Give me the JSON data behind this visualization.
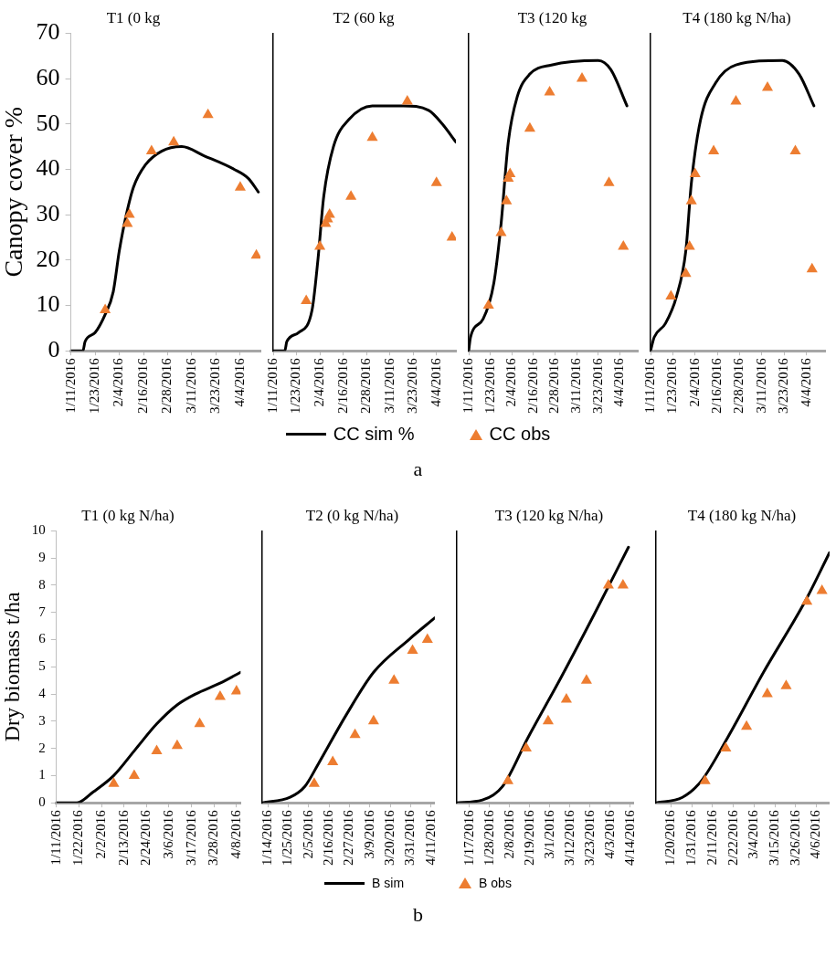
{
  "chart_data": [
    {
      "type": "line",
      "title": "T1 (0 kg",
      "ylabel": "Canopy cover %",
      "xlim": [
        "2016-01-11",
        "2016-04-14"
      ],
      "xticks": [
        {
          "value": "2016-01-11",
          "label": "1/11/2016"
        },
        {
          "value": "2016-01-23",
          "label": "1/23/2016"
        },
        {
          "value": "2016-02-04",
          "label": "2/4/2016"
        },
        {
          "value": "2016-02-16",
          "label": "2/16/2016"
        },
        {
          "value": "2016-02-28",
          "label": "2/28/2016"
        },
        {
          "value": "2016-03-11",
          "label": "3/11/2016"
        },
        {
          "value": "2016-03-23",
          "label": "3/23/2016"
        },
        {
          "value": "2016-04-04",
          "label": "4/4/2016"
        }
      ],
      "ylim": [
        0,
        70
      ],
      "yticks": [
        0,
        10,
        20,
        30,
        40,
        50,
        60,
        70
      ],
      "legend": "bottom",
      "annotations": [
        "a"
      ],
      "series": [
        {
          "name": "CC sim %",
          "type": "line",
          "marker": "none",
          "color": "#000000",
          "x": [
            "2016-01-11",
            "2016-01-17",
            "2016-01-18",
            "2016-01-23",
            "2016-01-28",
            "2016-02-01",
            "2016-02-04",
            "2016-02-07",
            "2016-02-11",
            "2016-02-17",
            "2016-02-25",
            "2016-03-06",
            "2016-03-17",
            "2016-04-01",
            "2016-04-08",
            "2016-04-13"
          ],
          "values": [
            0,
            0,
            2,
            4,
            8,
            13,
            22,
            29,
            36,
            41,
            44,
            45,
            43,
            40,
            38,
            35
          ]
        },
        {
          "name": "CC obs",
          "type": "scatter",
          "marker": "triangle",
          "color": "#ed7d31",
          "x": [
            "2016-01-28",
            "2016-02-08",
            "2016-02-09",
            "2016-02-20",
            "2016-03-02",
            "2016-03-19",
            "2016-04-04",
            "2016-04-12"
          ],
          "values": [
            9,
            28,
            30,
            44,
            46,
            52,
            36,
            21
          ]
        }
      ]
    },
    {
      "type": "line",
      "title": "T2 (60 kg",
      "tick_labels": "x",
      "xlim": [
        "2016-01-11",
        "2016-04-14"
      ],
      "xticks": [
        {
          "value": "2016-01-11",
          "label": "1/11/2016"
        },
        {
          "value": "2016-01-23",
          "label": "1/23/2016"
        },
        {
          "value": "2016-02-04",
          "label": "2/4/2016"
        },
        {
          "value": "2016-02-16",
          "label": "2/16/2016"
        },
        {
          "value": "2016-02-28",
          "label": "2/28/2016"
        },
        {
          "value": "2016-03-11",
          "label": "3/11/2016"
        },
        {
          "value": "2016-03-23",
          "label": "3/23/2016"
        },
        {
          "value": "2016-04-04",
          "label": "4/4/2016"
        }
      ],
      "ylim": [
        0,
        70
      ],
      "yticks": [
        0,
        10,
        20,
        30,
        40,
        50,
        60,
        70
      ],
      "series": [
        {
          "type": "line",
          "marker": "none",
          "color": "#000000",
          "x": [
            "2016-01-11",
            "2016-01-17",
            "2016-01-18",
            "2016-01-24",
            "2016-01-31",
            "2016-02-03",
            "2016-02-06",
            "2016-02-11",
            "2016-02-19",
            "2016-03-02",
            "2016-03-18",
            "2016-03-31",
            "2016-04-07",
            "2016-04-14"
          ],
          "values": [
            0,
            0,
            2,
            4,
            9,
            20,
            34,
            45,
            51,
            54,
            54,
            53,
            50,
            46
          ]
        },
        {
          "type": "scatter",
          "marker": "triangle",
          "color": "#ed7d31",
          "x": [
            "2016-01-28",
            "2016-02-04",
            "2016-02-07",
            "2016-02-08",
            "2016-02-09",
            "2016-02-20",
            "2016-03-02",
            "2016-03-20",
            "2016-04-04",
            "2016-04-12"
          ],
          "values": [
            11,
            23,
            28,
            29,
            30,
            34,
            47,
            55,
            37,
            25
          ]
        }
      ]
    },
    {
      "type": "line",
      "title": "T3 (120 kg",
      "tick_labels": "x",
      "xlim": [
        "2016-01-11",
        "2016-04-14"
      ],
      "xticks": [
        {
          "value": "2016-01-11",
          "label": "1/11/2016"
        },
        {
          "value": "2016-01-23",
          "label": "1/23/2016"
        },
        {
          "value": "2016-02-04",
          "label": "2/4/2016"
        },
        {
          "value": "2016-02-16",
          "label": "2/16/2016"
        },
        {
          "value": "2016-02-28",
          "label": "2/28/2016"
        },
        {
          "value": "2016-03-11",
          "label": "3/11/2016"
        },
        {
          "value": "2016-03-23",
          "label": "3/23/2016"
        },
        {
          "value": "2016-04-04",
          "label": "4/4/2016"
        }
      ],
      "ylim": [
        0,
        70
      ],
      "yticks": [
        0,
        10,
        20,
        30,
        40,
        50,
        60,
        70
      ],
      "series": [
        {
          "type": "line",
          "marker": "none",
          "color": "#000000",
          "x": [
            "2016-01-11",
            "2016-01-12",
            "2016-01-19",
            "2016-01-25",
            "2016-01-29",
            "2016-02-02",
            "2016-02-07",
            "2016-02-14",
            "2016-02-26",
            "2016-03-23",
            "2016-03-30",
            "2016-04-08"
          ],
          "values": [
            0,
            3,
            7,
            15,
            28,
            46,
            56,
            61,
            63,
            64,
            62,
            54
          ]
        },
        {
          "type": "scatter",
          "marker": "triangle",
          "color": "#ed7d31",
          "x": [
            "2016-01-22",
            "2016-01-29",
            "2016-02-01",
            "2016-02-02",
            "2016-02-03",
            "2016-02-14",
            "2016-02-25",
            "2016-03-14",
            "2016-03-29",
            "2016-04-06"
          ],
          "values": [
            10,
            26,
            33,
            38,
            39,
            49,
            57,
            60,
            37,
            23
          ]
        }
      ]
    },
    {
      "type": "line",
      "title": "T4 (180 kg N/ha)",
      "tick_labels": "x",
      "xlim": [
        "2016-01-11",
        "2016-04-14"
      ],
      "xticks": [
        {
          "value": "2016-01-11",
          "label": "1/11/2016"
        },
        {
          "value": "2016-01-23",
          "label": "1/23/2016"
        },
        {
          "value": "2016-02-04",
          "label": "2/4/2016"
        },
        {
          "value": "2016-02-16",
          "label": "2/16/2016"
        },
        {
          "value": "2016-02-28",
          "label": "2/28/2016"
        },
        {
          "value": "2016-03-11",
          "label": "3/11/2016"
        },
        {
          "value": "2016-03-23",
          "label": "3/23/2016"
        },
        {
          "value": "2016-04-04",
          "label": "4/4/2016"
        }
      ],
      "ylim": [
        0,
        70
      ],
      "yticks": [
        0,
        10,
        20,
        30,
        40,
        50,
        60,
        70
      ],
      "series": [
        {
          "type": "line",
          "marker": "none",
          "color": "#000000",
          "x": [
            "2016-01-11",
            "2016-01-13",
            "2016-01-19",
            "2016-01-25",
            "2016-01-30",
            "2016-02-02",
            "2016-02-07",
            "2016-02-15",
            "2016-02-26",
            "2016-03-22",
            "2016-03-31",
            "2016-04-08"
          ],
          "values": [
            0,
            3,
            6,
            12,
            22,
            37,
            51,
            59,
            63,
            64,
            61,
            54
          ]
        },
        {
          "type": "scatter",
          "marker": "triangle",
          "color": "#ed7d31",
          "x": [
            "2016-01-22",
            "2016-01-30",
            "2016-02-01",
            "2016-02-02",
            "2016-02-04",
            "2016-02-14",
            "2016-02-26",
            "2016-03-14",
            "2016-03-29",
            "2016-04-07"
          ],
          "values": [
            12,
            17,
            23,
            33,
            39,
            44,
            55,
            58,
            44,
            18
          ]
        }
      ]
    },
    {
      "type": "line",
      "title": "T1 (0 kg N/ha)",
      "ylabel": "Dry biomass t/ha",
      "xlim": [
        "2016-01-11",
        "2016-04-10"
      ],
      "xticks": [
        {
          "value": "2016-01-11",
          "label": "1/11/2016"
        },
        {
          "value": "2016-01-22",
          "label": "1/22/2016"
        },
        {
          "value": "2016-02-02",
          "label": "2/2/2016"
        },
        {
          "value": "2016-02-13",
          "label": "2/13/2016"
        },
        {
          "value": "2016-02-24",
          "label": "2/24/2016"
        },
        {
          "value": "2016-03-06",
          "label": "3/6/2016"
        },
        {
          "value": "2016-03-17",
          "label": "3/17/2016"
        },
        {
          "value": "2016-03-28",
          "label": "3/28/2016"
        },
        {
          "value": "2016-04-08",
          "label": "4/8/2016"
        }
      ],
      "ylim": [
        0,
        10
      ],
      "yticks": [
        0,
        1,
        2,
        3,
        4,
        5,
        6,
        7,
        8,
        9,
        10
      ],
      "legend": "bottom",
      "annotations": [
        "b"
      ],
      "series": [
        {
          "name": "B sim",
          "type": "line",
          "marker": "none",
          "color": "#000000",
          "x": [
            "2016-01-11",
            "2016-01-21",
            "2016-01-29",
            "2016-02-08",
            "2016-02-19",
            "2016-02-29",
            "2016-03-10",
            "2016-03-19",
            "2016-03-31",
            "2016-04-10"
          ],
          "values": [
            0,
            0,
            0.4,
            1.0,
            2.0,
            2.9,
            3.6,
            4.0,
            4.4,
            4.8
          ]
        },
        {
          "name": "B obs",
          "type": "scatter",
          "marker": "triangle",
          "color": "#ed7d31",
          "x": [
            "2016-02-08",
            "2016-02-18",
            "2016-02-29",
            "2016-03-10",
            "2016-03-21",
            "2016-03-31",
            "2016-04-08"
          ],
          "values": [
            0.7,
            1.0,
            1.9,
            2.1,
            2.9,
            3.9,
            4.1
          ]
        }
      ]
    },
    {
      "type": "line",
      "title": "T2 (0 kg N/ha)",
      "tick_labels": "x",
      "xlim": [
        "2016-01-11",
        "2016-04-13"
      ],
      "xticks": [
        {
          "value": "2016-01-14",
          "label": "1/14/2016"
        },
        {
          "value": "2016-01-25",
          "label": "1/25/2016"
        },
        {
          "value": "2016-02-05",
          "label": "2/5/2016"
        },
        {
          "value": "2016-02-16",
          "label": "2/16/2016"
        },
        {
          "value": "2016-02-27",
          "label": "2/27/2016"
        },
        {
          "value": "2016-03-09",
          "label": "3/9/2016"
        },
        {
          "value": "2016-03-20",
          "label": "3/20/2016"
        },
        {
          "value": "2016-03-31",
          "label": "3/31/2016"
        },
        {
          "value": "2016-04-11",
          "label": "4/11/2016"
        }
      ],
      "ylim": [
        0,
        10
      ],
      "yticks": [
        0,
        1,
        2,
        3,
        4,
        5,
        6,
        7,
        8,
        9,
        10
      ],
      "series": [
        {
          "type": "line",
          "marker": "none",
          "color": "#000000",
          "x": [
            "2016-01-11",
            "2016-01-26",
            "2016-02-03",
            "2016-02-10",
            "2016-02-25",
            "2016-03-11",
            "2016-03-30",
            "2016-04-13"
          ],
          "values": [
            0,
            0.2,
            0.6,
            1.4,
            3.2,
            4.8,
            6.0,
            6.8
          ]
        },
        {
          "type": "scatter",
          "marker": "triangle",
          "color": "#ed7d31",
          "x": [
            "2016-02-08",
            "2016-02-18",
            "2016-03-01",
            "2016-03-11",
            "2016-03-22",
            "2016-04-01",
            "2016-04-09"
          ],
          "values": [
            0.7,
            1.5,
            2.5,
            3.0,
            4.5,
            5.6,
            6.0
          ]
        }
      ]
    },
    {
      "type": "line",
      "title": "T3 (120 kg N/ha)",
      "tick_labels": "x",
      "xlim": [
        "2016-01-10",
        "2016-04-16"
      ],
      "xticks": [
        {
          "value": "2016-01-17",
          "label": "1/17/2016"
        },
        {
          "value": "2016-01-28",
          "label": "1/28/2016"
        },
        {
          "value": "2016-02-08",
          "label": "2/8/2016"
        },
        {
          "value": "2016-02-19",
          "label": "2/19/2016"
        },
        {
          "value": "2016-03-01",
          "label": "3/1/2016"
        },
        {
          "value": "2016-03-12",
          "label": "3/12/2016"
        },
        {
          "value": "2016-03-23",
          "label": "3/23/2016"
        },
        {
          "value": "2016-04-03",
          "label": "4/3/2016"
        },
        {
          "value": "2016-04-14",
          "label": "4/14/2016"
        }
      ],
      "ylim": [
        0,
        10
      ],
      "yticks": [
        0,
        1,
        2,
        3,
        4,
        5,
        6,
        7,
        8,
        9,
        10
      ],
      "series": [
        {
          "type": "line",
          "marker": "none",
          "color": "#000000",
          "x": [
            "2016-01-10",
            "2016-01-24",
            "2016-02-04",
            "2016-02-18",
            "2016-03-07",
            "2016-03-25",
            "2016-04-13"
          ],
          "values": [
            0,
            0.1,
            0.6,
            2.4,
            4.6,
            6.9,
            9.4
          ]
        },
        {
          "type": "scatter",
          "marker": "triangle",
          "color": "#ed7d31",
          "x": [
            "2016-02-07",
            "2016-02-17",
            "2016-02-29",
            "2016-03-10",
            "2016-03-21",
            "2016-04-02",
            "2016-04-10"
          ],
          "values": [
            0.8,
            2.0,
            3.0,
            3.8,
            4.5,
            8.0,
            8.0
          ]
        }
      ]
    },
    {
      "type": "line",
      "title": "T4 (180 kg N/ha)",
      "tick_labels": "x",
      "xlim": [
        "2016-01-12",
        "2016-04-13"
      ],
      "xticks": [
        {
          "value": "2016-01-20",
          "label": "1/20/2016"
        },
        {
          "value": "2016-01-31",
          "label": "1/31/2016"
        },
        {
          "value": "2016-02-11",
          "label": "2/11/2016"
        },
        {
          "value": "2016-02-22",
          "label": "2/22/2016"
        },
        {
          "value": "2016-03-04",
          "label": "3/4/2016"
        },
        {
          "value": "2016-03-15",
          "label": "3/15/2016"
        },
        {
          "value": "2016-03-26",
          "label": "3/26/2016"
        },
        {
          "value": "2016-04-06",
          "label": "4/6/2016"
        }
      ],
      "ylim": [
        0,
        10
      ],
      "yticks": [
        0,
        1,
        2,
        3,
        4,
        5,
        6,
        7,
        8,
        9,
        10
      ],
      "series": [
        {
          "type": "line",
          "marker": "none",
          "color": "#000000",
          "x": [
            "2016-01-12",
            "2016-01-26",
            "2016-02-05",
            "2016-02-19",
            "2016-03-09",
            "2016-03-31",
            "2016-04-13"
          ],
          "values": [
            0,
            0.2,
            0.8,
            2.4,
            4.8,
            7.4,
            9.2
          ]
        },
        {
          "type": "scatter",
          "marker": "triangle",
          "color": "#ed7d31",
          "x": [
            "2016-02-07",
            "2016-02-18",
            "2016-02-29",
            "2016-03-11",
            "2016-03-21",
            "2016-04-01",
            "2016-04-09"
          ],
          "values": [
            0.8,
            2.0,
            2.8,
            4.0,
            4.3,
            7.4,
            7.8
          ]
        }
      ]
    }
  ]
}
